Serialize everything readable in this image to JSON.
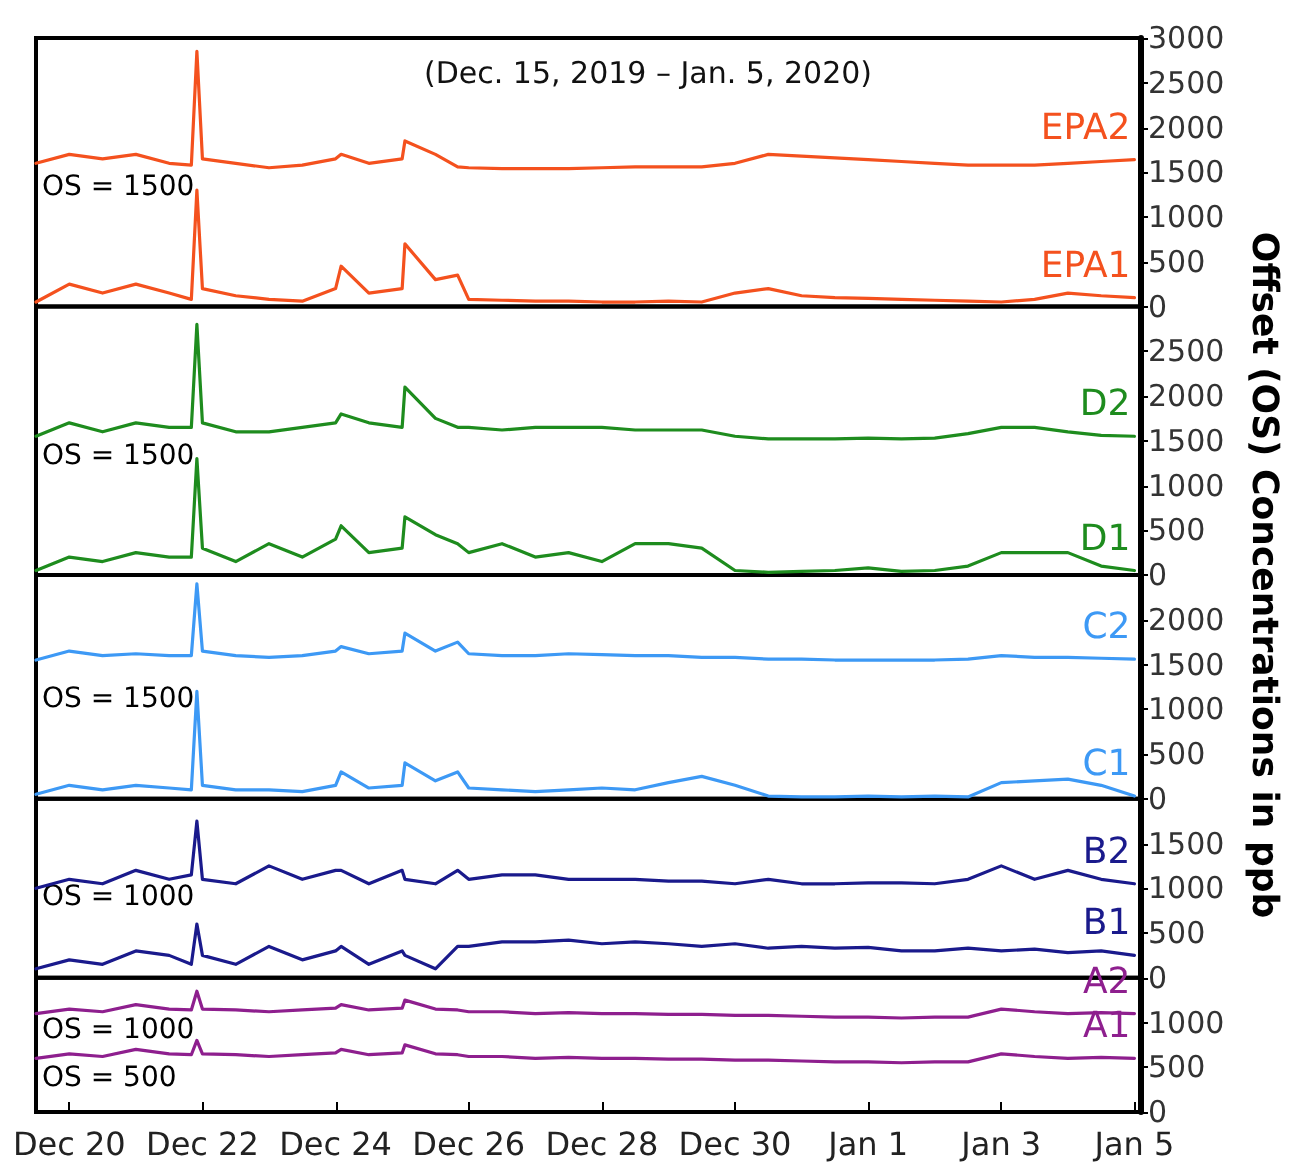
{
  "chart_data": [
    {
      "type": "line",
      "subtitle": "(Dec. 15, 2019 – Jan. 5, 2020)",
      "ylabel": "Offset (OS) Concentrations in ppb",
      "annotations": [
        "OS = 1500"
      ],
      "tick_labels": "y",
      "x": [
        "2019-12-19T12:00",
        "2019-12-20T00:00",
        "2019-12-20T12:00",
        "2019-12-21T00:00",
        "2019-12-21T12:00",
        "2019-12-21T20:00",
        "2019-12-21T22:00",
        "2019-12-22T00:00",
        "2019-12-22T12:00",
        "2019-12-23T00:00",
        "2019-12-23T12:00",
        "2019-12-24T00:00",
        "2019-12-24T02:00",
        "2019-12-24T12:00",
        "2019-12-25T00:00",
        "2019-12-25T01:00",
        "2019-12-25T12:00",
        "2019-12-25T20:00",
        "2019-12-26T00:00",
        "2019-12-26T12:00",
        "2019-12-27T00:00",
        "2019-12-27T12:00",
        "2019-12-28T00:00",
        "2019-12-28T12:00",
        "2019-12-29T00:00",
        "2019-12-29T12:00",
        "2019-12-30T00:00",
        "2019-12-30T12:00",
        "2019-12-31T00:00",
        "2019-12-31T12:00",
        "2020-01-01T00:00",
        "2020-01-01T12:00",
        "2020-01-02T00:00",
        "2020-01-02T12:00",
        "2020-01-03T00:00",
        "2020-01-03T12:00",
        "2020-01-04T00:00",
        "2020-01-04T12:00",
        "2020-01-05T00:00"
      ],
      "xlim": [
        "2019-12-19T12:00",
        "2020-01-05T02:00"
      ],
      "ylim": [
        0,
        3000
      ],
      "yticks": [
        0,
        500,
        1000,
        1500,
        2000,
        2500,
        3000
      ],
      "series": [
        {
          "name": "EPA2",
          "color": "#f4511e",
          "values": [
            1600,
            1700,
            1650,
            1700,
            1600,
            1580,
            2850,
            1650,
            1600,
            1550,
            1580,
            1650,
            1700,
            1600,
            1650,
            1850,
            1700,
            1560,
            1550,
            1540,
            1540,
            1540,
            1550,
            1560,
            1560,
            1560,
            1600,
            1700,
            1680,
            1660,
            1640,
            1620,
            1600,
            1580,
            1580,
            1580,
            1600,
            1620,
            1640
          ]
        },
        {
          "name": "EPA1",
          "color": "#f4511e",
          "values": [
            50,
            250,
            150,
            250,
            150,
            80,
            1300,
            200,
            120,
            80,
            60,
            200,
            450,
            150,
            200,
            700,
            300,
            350,
            80,
            70,
            60,
            60,
            50,
            50,
            60,
            50,
            150,
            200,
            120,
            100,
            90,
            80,
            70,
            60,
            50,
            80,
            150,
            120,
            100
          ]
        }
      ]
    },
    {
      "type": "line",
      "annotations": [
        "OS = 1500"
      ],
      "tick_labels": "y",
      "x": [
        "2019-12-19T12:00",
        "2019-12-20T00:00",
        "2019-12-20T12:00",
        "2019-12-21T00:00",
        "2019-12-21T12:00",
        "2019-12-21T20:00",
        "2019-12-21T22:00",
        "2019-12-22T00:00",
        "2019-12-22T12:00",
        "2019-12-23T00:00",
        "2019-12-23T12:00",
        "2019-12-24T00:00",
        "2019-12-24T02:00",
        "2019-12-24T12:00",
        "2019-12-25T00:00",
        "2019-12-25T01:00",
        "2019-12-25T12:00",
        "2019-12-25T20:00",
        "2019-12-26T00:00",
        "2019-12-26T12:00",
        "2019-12-27T00:00",
        "2019-12-27T12:00",
        "2019-12-28T00:00",
        "2019-12-28T12:00",
        "2019-12-29T00:00",
        "2019-12-29T12:00",
        "2019-12-30T00:00",
        "2019-12-30T12:00",
        "2019-12-31T00:00",
        "2019-12-31T12:00",
        "2020-01-01T00:00",
        "2020-01-01T12:00",
        "2020-01-02T00:00",
        "2020-01-02T12:00",
        "2020-01-03T00:00",
        "2020-01-03T12:00",
        "2020-01-04T00:00",
        "2020-01-04T12:00",
        "2020-01-05T00:00"
      ],
      "xlim": [
        "2019-12-19T12:00",
        "2020-01-05T02:00"
      ],
      "ylim": [
        0,
        3000
      ],
      "yticks": [
        0,
        500,
        1000,
        1500,
        2000,
        2500
      ],
      "series": [
        {
          "name": "D2",
          "color": "#1e8c1e",
          "values": [
            1550,
            1700,
            1600,
            1700,
            1650,
            1650,
            2800,
            1700,
            1600,
            1600,
            1650,
            1700,
            1800,
            1700,
            1650,
            2100,
            1750,
            1650,
            1650,
            1620,
            1650,
            1650,
            1650,
            1620,
            1620,
            1620,
            1550,
            1520,
            1520,
            1520,
            1530,
            1520,
            1530,
            1580,
            1650,
            1650,
            1600,
            1560,
            1550
          ]
        },
        {
          "name": "D1",
          "color": "#1e8c1e",
          "values": [
            50,
            200,
            150,
            250,
            200,
            200,
            1300,
            300,
            150,
            350,
            200,
            400,
            550,
            250,
            300,
            650,
            450,
            350,
            250,
            350,
            200,
            250,
            150,
            350,
            350,
            300,
            50,
            30,
            40,
            50,
            80,
            40,
            50,
            100,
            250,
            250,
            250,
            100,
            50
          ]
        }
      ]
    },
    {
      "type": "line",
      "annotations": [
        "OS = 1500"
      ],
      "tick_labels": "y",
      "x": [
        "2019-12-19T12:00",
        "2019-12-20T00:00",
        "2019-12-20T12:00",
        "2019-12-21T00:00",
        "2019-12-21T12:00",
        "2019-12-21T20:00",
        "2019-12-21T22:00",
        "2019-12-22T00:00",
        "2019-12-22T12:00",
        "2019-12-23T00:00",
        "2019-12-23T12:00",
        "2019-12-24T00:00",
        "2019-12-24T02:00",
        "2019-12-24T12:00",
        "2019-12-25T00:00",
        "2019-12-25T01:00",
        "2019-12-25T12:00",
        "2019-12-25T20:00",
        "2019-12-26T00:00",
        "2019-12-26T12:00",
        "2019-12-27T00:00",
        "2019-12-27T12:00",
        "2019-12-28T00:00",
        "2019-12-28T12:00",
        "2019-12-29T00:00",
        "2019-12-29T12:00",
        "2019-12-30T00:00",
        "2019-12-30T12:00",
        "2019-12-31T00:00",
        "2019-12-31T12:00",
        "2020-01-01T00:00",
        "2020-01-01T12:00",
        "2020-01-02T00:00",
        "2020-01-02T12:00",
        "2020-01-03T00:00",
        "2020-01-03T12:00",
        "2020-01-04T00:00",
        "2020-01-04T12:00",
        "2020-01-05T00:00"
      ],
      "xlim": [
        "2019-12-19T12:00",
        "2020-01-05T02:00"
      ],
      "ylim": [
        0,
        2500
      ],
      "yticks": [
        0,
        500,
        1000,
        1500,
        2000
      ],
      "series": [
        {
          "name": "C2",
          "color": "#3d99f5",
          "values": [
            1550,
            1650,
            1600,
            1620,
            1600,
            1600,
            2400,
            1650,
            1600,
            1580,
            1600,
            1650,
            1700,
            1620,
            1650,
            1850,
            1650,
            1750,
            1620,
            1600,
            1600,
            1620,
            1610,
            1600,
            1600,
            1580,
            1580,
            1560,
            1560,
            1550,
            1550,
            1550,
            1550,
            1560,
            1600,
            1580,
            1580,
            1570,
            1560
          ]
        },
        {
          "name": "C1",
          "color": "#3d99f5",
          "values": [
            50,
            150,
            100,
            150,
            120,
            100,
            1200,
            150,
            100,
            100,
            80,
            150,
            300,
            120,
            150,
            400,
            200,
            300,
            120,
            100,
            80,
            100,
            120,
            100,
            180,
            250,
            150,
            30,
            20,
            20,
            30,
            20,
            30,
            20,
            180,
            200,
            220,
            150,
            30
          ]
        }
      ]
    },
    {
      "type": "line",
      "annotations": [
        "OS = 1000"
      ],
      "tick_labels": "y",
      "x": [
        "2019-12-19T12:00",
        "2019-12-20T00:00",
        "2019-12-20T12:00",
        "2019-12-21T00:00",
        "2019-12-21T12:00",
        "2019-12-21T20:00",
        "2019-12-21T22:00",
        "2019-12-22T00:00",
        "2019-12-22T12:00",
        "2019-12-23T00:00",
        "2019-12-23T12:00",
        "2019-12-24T00:00",
        "2019-12-24T02:00",
        "2019-12-24T12:00",
        "2019-12-25T00:00",
        "2019-12-25T01:00",
        "2019-12-25T12:00",
        "2019-12-25T20:00",
        "2019-12-26T00:00",
        "2019-12-26T12:00",
        "2019-12-27T00:00",
        "2019-12-27T12:00",
        "2019-12-28T00:00",
        "2019-12-28T12:00",
        "2019-12-29T00:00",
        "2019-12-29T12:00",
        "2019-12-30T00:00",
        "2019-12-30T12:00",
        "2019-12-31T00:00",
        "2019-12-31T12:00",
        "2020-01-01T00:00",
        "2020-01-01T12:00",
        "2020-01-02T00:00",
        "2020-01-02T12:00",
        "2020-01-03T00:00",
        "2020-01-03T12:00",
        "2020-01-04T00:00",
        "2020-01-04T12:00",
        "2020-01-05T00:00"
      ],
      "xlim": [
        "2019-12-19T12:00",
        "2020-01-05T02:00"
      ],
      "ylim": [
        0,
        2000
      ],
      "yticks": [
        0,
        500,
        1000,
        1500
      ],
      "series": [
        {
          "name": "B2",
          "color": "#1a1a8c",
          "values": [
            1000,
            1100,
            1050,
            1200,
            1100,
            1150,
            1750,
            1100,
            1050,
            1250,
            1100,
            1200,
            1200,
            1050,
            1200,
            1100,
            1050,
            1200,
            1100,
            1150,
            1150,
            1100,
            1100,
            1100,
            1080,
            1080,
            1050,
            1100,
            1050,
            1050,
            1060,
            1060,
            1050,
            1100,
            1250,
            1100,
            1200,
            1100,
            1050
          ]
        },
        {
          "name": "B1",
          "color": "#1a1a8c",
          "values": [
            100,
            200,
            150,
            300,
            250,
            150,
            600,
            250,
            150,
            350,
            200,
            300,
            350,
            150,
            300,
            250,
            100,
            350,
            350,
            400,
            400,
            420,
            380,
            400,
            380,
            350,
            380,
            330,
            350,
            330,
            340,
            300,
            300,
            330,
            300,
            320,
            280,
            300,
            250
          ]
        }
      ]
    },
    {
      "type": "line",
      "annotations": [
        "OS = 1000",
        "OS = 500"
      ],
      "x": [
        "2019-12-19T12:00",
        "2019-12-20T00:00",
        "2019-12-20T12:00",
        "2019-12-21T00:00",
        "2019-12-21T12:00",
        "2019-12-21T20:00",
        "2019-12-21T22:00",
        "2019-12-22T00:00",
        "2019-12-22T12:00",
        "2019-12-23T00:00",
        "2019-12-23T12:00",
        "2019-12-24T00:00",
        "2019-12-24T02:00",
        "2019-12-24T12:00",
        "2019-12-25T00:00",
        "2019-12-25T01:00",
        "2019-12-25T12:00",
        "2019-12-25T20:00",
        "2019-12-26T00:00",
        "2019-12-26T12:00",
        "2019-12-27T00:00",
        "2019-12-27T12:00",
        "2019-12-28T00:00",
        "2019-12-28T12:00",
        "2019-12-29T00:00",
        "2019-12-29T12:00",
        "2019-12-30T00:00",
        "2019-12-30T12:00",
        "2019-12-31T00:00",
        "2019-12-31T12:00",
        "2020-01-01T00:00",
        "2020-01-01T12:00",
        "2020-01-02T00:00",
        "2020-01-02T12:00",
        "2020-01-03T00:00",
        "2020-01-03T12:00",
        "2020-01-04T00:00",
        "2020-01-04T12:00",
        "2020-01-05T00:00"
      ],
      "xlim": [
        "2019-12-19T12:00",
        "2020-01-05T02:00"
      ],
      "ylim": [
        0,
        1500
      ],
      "yticks": [
        0,
        500,
        1000
      ],
      "xticks": [
        {
          "value": "2019-12-20",
          "label": "Dec 20"
        },
        {
          "value": "2019-12-22",
          "label": "Dec 22"
        },
        {
          "value": "2019-12-24",
          "label": "Dec 24"
        },
        {
          "value": "2019-12-26",
          "label": "Dec 26"
        },
        {
          "value": "2019-12-28",
          "label": "Dec 28"
        },
        {
          "value": "2019-12-30",
          "label": "Dec 30"
        },
        {
          "value": "2020-01-01",
          "label": "Jan 1"
        },
        {
          "value": "2020-01-03",
          "label": "Jan 3"
        },
        {
          "value": "2020-01-05",
          "label": "Jan 5"
        }
      ],
      "series": [
        {
          "name": "A2",
          "color": "#8e1f8e",
          "values": [
            1100,
            1150,
            1120,
            1200,
            1150,
            1140,
            1350,
            1150,
            1140,
            1120,
            1140,
            1160,
            1200,
            1140,
            1160,
            1250,
            1150,
            1140,
            1120,
            1120,
            1100,
            1110,
            1100,
            1100,
            1090,
            1090,
            1080,
            1080,
            1070,
            1060,
            1060,
            1050,
            1060,
            1060,
            1150,
            1120,
            1100,
            1110,
            1100
          ]
        },
        {
          "name": "A1",
          "color": "#8e1f8e",
          "values": [
            600,
            650,
            620,
            700,
            650,
            640,
            800,
            650,
            640,
            620,
            640,
            660,
            700,
            640,
            660,
            750,
            650,
            640,
            620,
            620,
            600,
            610,
            600,
            600,
            590,
            590,
            580,
            580,
            570,
            560,
            560,
            550,
            560,
            560,
            650,
            620,
            600,
            610,
            600
          ]
        }
      ]
    }
  ]
}
